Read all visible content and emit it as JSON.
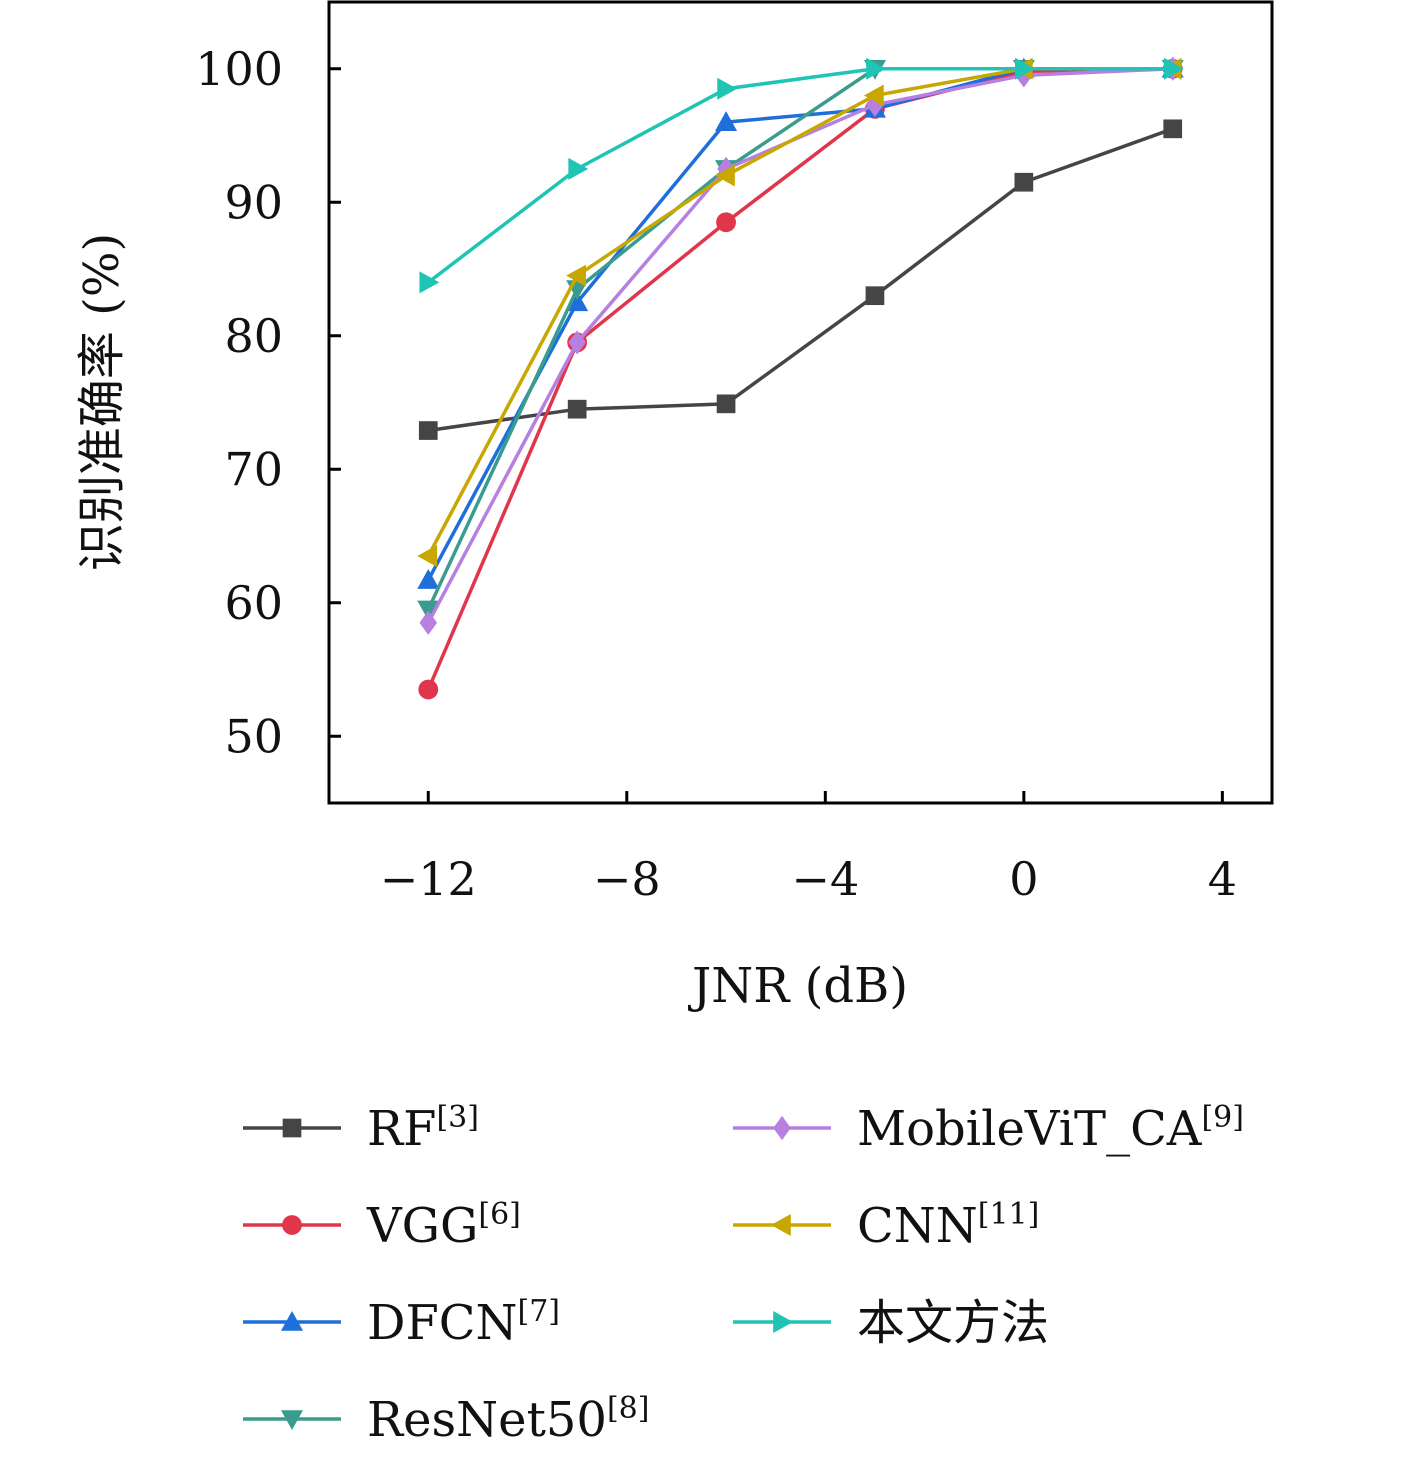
{
  "chart_data": {
    "type": "line",
    "title": "",
    "xlabel": "JNR (dB)",
    "ylabel": "识别准确率 (%)",
    "xlim": [
      -14,
      5
    ],
    "ylim": [
      45,
      105
    ],
    "xticks": [
      -12,
      -8,
      -4,
      0,
      4
    ],
    "yticks": [
      50,
      60,
      70,
      80,
      90,
      100
    ],
    "xtick_labels": [
      "−12",
      "−8",
      "−4",
      "0",
      "4"
    ],
    "ytick_labels": [
      "50",
      "60",
      "70",
      "80",
      "90",
      "100"
    ],
    "grid": false,
    "legend_position": "bottom",
    "x": [
      -12,
      -9,
      -6,
      -3,
      0,
      3
    ],
    "series": [
      {
        "name": "RF",
        "ref": "[3]",
        "color": "#454545",
        "marker": "square",
        "values": [
          72.9,
          74.5,
          74.9,
          83.0,
          91.5,
          95.5
        ]
      },
      {
        "name": "VGG",
        "ref": "[6]",
        "color": "#e0354b",
        "marker": "circle",
        "values": [
          53.5,
          79.5,
          88.5,
          97.0,
          99.8,
          100.0
        ]
      },
      {
        "name": "DFCN",
        "ref": "[7]",
        "color": "#1f6fdb",
        "marker": "triangle-up",
        "values": [
          61.7,
          82.5,
          96.0,
          97.0,
          100.0,
          100.0
        ]
      },
      {
        "name": "ResNet50",
        "ref": "[8]",
        "color": "#3a9c8e",
        "marker": "triangle-down",
        "values": [
          59.5,
          83.5,
          92.5,
          100.0,
          100.0,
          100.0
        ]
      },
      {
        "name": "MobileViT_CA",
        "ref": "[9]",
        "color": "#b77fe0",
        "marker": "diamond",
        "values": [
          58.5,
          79.5,
          92.5,
          97.3,
          99.5,
          100.0
        ]
      },
      {
        "name": "CNN",
        "ref": "[11]",
        "color": "#c8a800",
        "marker": "triangle-left",
        "values": [
          63.5,
          84.5,
          92.0,
          98.0,
          100.0,
          100.0
        ]
      },
      {
        "name": "本文方法",
        "ref": "",
        "color": "#1fc4b4",
        "marker": "triangle-right",
        "values": [
          84.0,
          92.5,
          98.5,
          100.0,
          100.0,
          100.0
        ]
      }
    ]
  }
}
